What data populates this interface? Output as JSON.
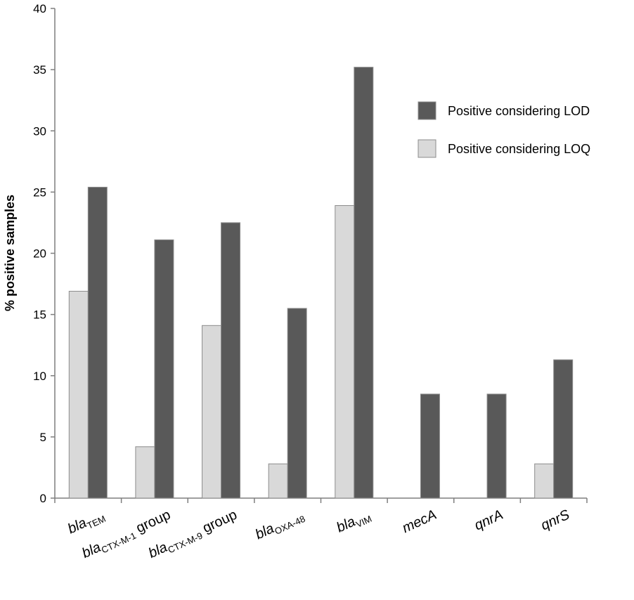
{
  "chart_data": {
    "type": "bar",
    "ylabel": "% positive samples",
    "ylim": [
      0,
      40
    ],
    "yticks": [
      0,
      5,
      10,
      15,
      20,
      25,
      30,
      35,
      40
    ],
    "categories": [
      {
        "main": "bla",
        "sub": "TEM",
        "suffix": "",
        "italic_main": true
      },
      {
        "main": "bla",
        "sub": "CTX-M-1",
        "suffix": " group",
        "italic_main": true
      },
      {
        "main": "bla",
        "sub": "CTX-M-9",
        "suffix": " group",
        "italic_main": true
      },
      {
        "main": "bla",
        "sub": "OXA-48",
        "suffix": "",
        "italic_main": true
      },
      {
        "main": "bla",
        "sub": "VIM",
        "suffix": "",
        "italic_main": true
      },
      {
        "main": "mecA",
        "sub": "",
        "suffix": "",
        "italic_main": true
      },
      {
        "main": "qnrA",
        "sub": "",
        "suffix": "",
        "italic_main": true
      },
      {
        "main": "qnrS",
        "sub": "",
        "suffix": "",
        "italic_main": true
      }
    ],
    "series": [
      {
        "name": "Positive considering LOQ",
        "color": "#d9d9d9",
        "values": [
          16.9,
          4.2,
          14.1,
          2.8,
          23.9,
          0,
          0,
          2.8
        ]
      },
      {
        "name": "Positive considering LOD",
        "color": "#595959",
        "values": [
          25.4,
          21.1,
          22.5,
          15.5,
          35.2,
          8.5,
          8.5,
          11.3
        ]
      }
    ],
    "legend": {
      "position": "top-right",
      "order": [
        "Positive considering LOD",
        "Positive considering LOQ"
      ]
    },
    "grid": false
  }
}
